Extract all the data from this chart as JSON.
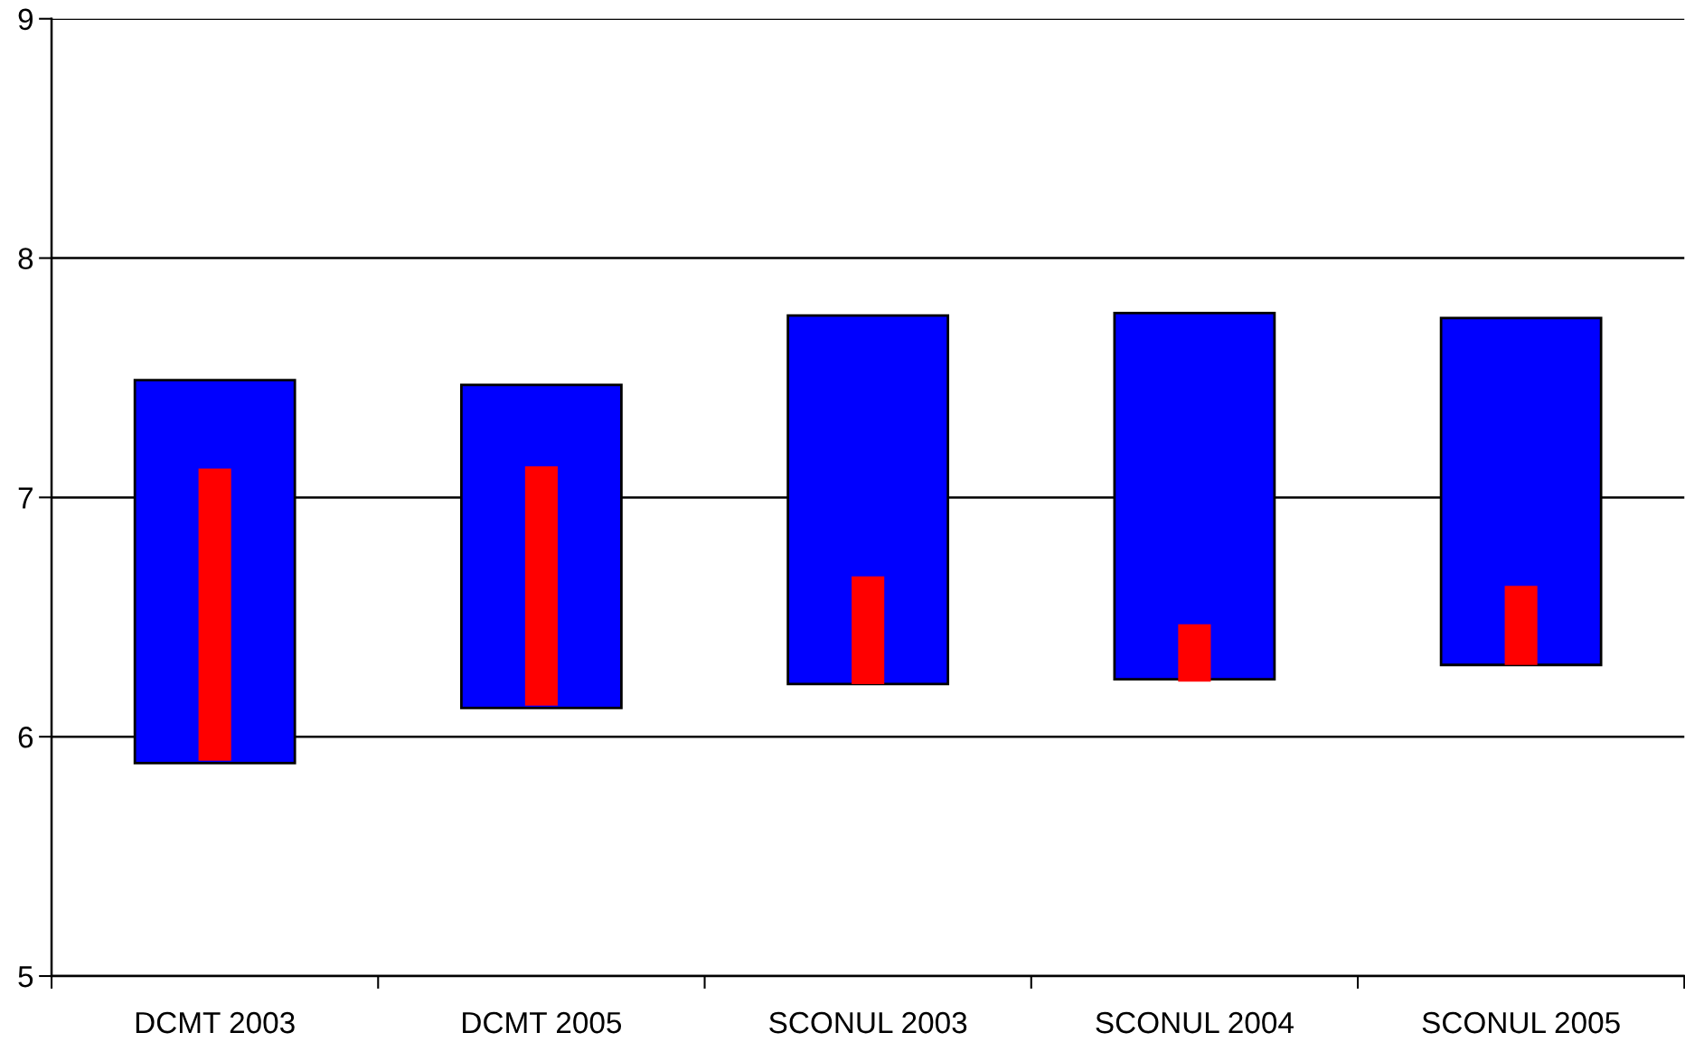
{
  "chart_data": {
    "type": "bar",
    "categories": [
      "DCMT 2003",
      "DCMT 2005",
      "SCONUL 2003",
      "SCONUL 2004",
      "SCONUL 2005"
    ],
    "series": [
      {
        "color": "#0000ff",
        "base": [
          5.89,
          6.12,
          6.22,
          6.24,
          6.3
        ],
        "values": [
          1.6,
          1.35,
          1.54,
          1.53,
          1.45
        ]
      },
      {
        "color": "#ff0000",
        "base": [
          5.9,
          6.13,
          6.22,
          6.23,
          6.3
        ],
        "values": [
          1.22,
          1.0,
          0.45,
          0.24,
          0.33
        ]
      }
    ],
    "ylim": [
      5,
      9
    ],
    "yticks": [
      5,
      6,
      7,
      8,
      9
    ],
    "grid": "y"
  }
}
